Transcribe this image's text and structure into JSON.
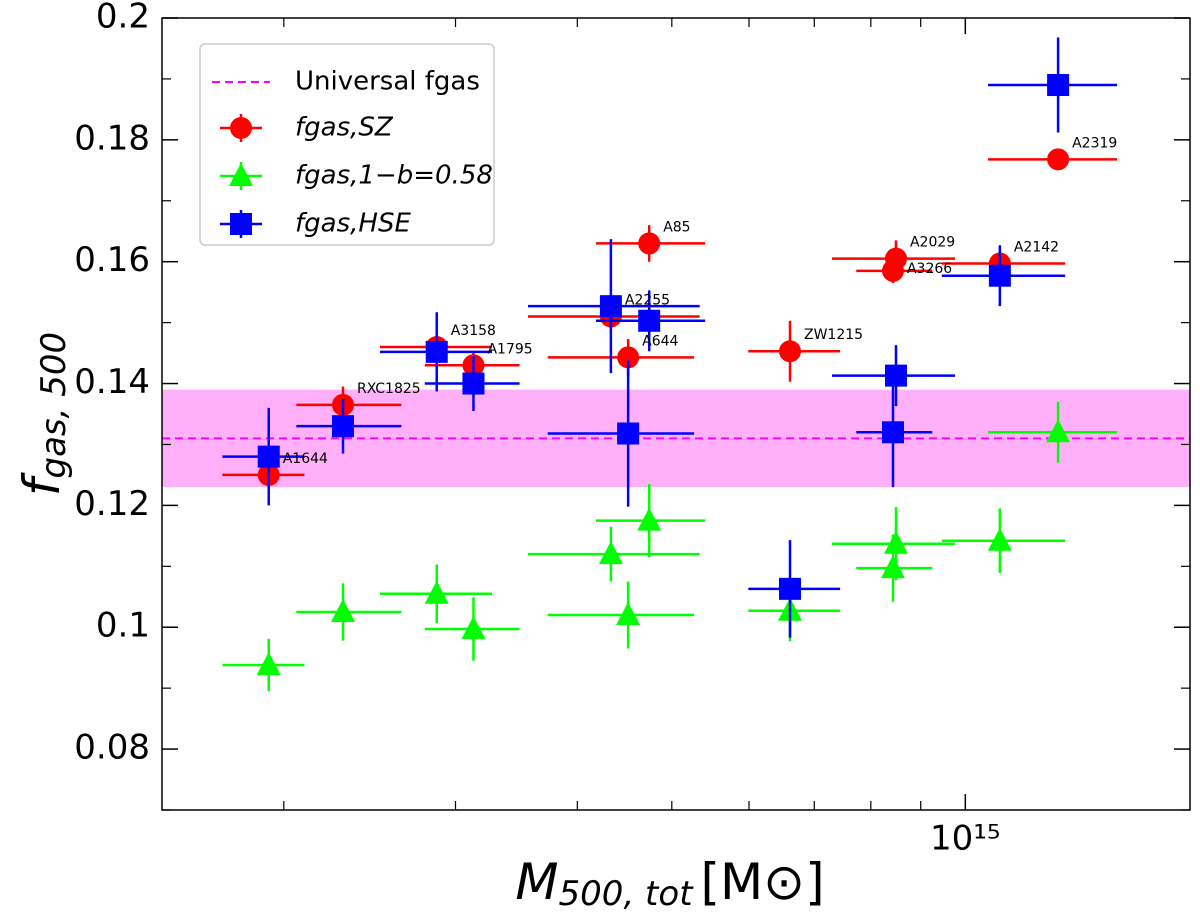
{
  "chart_data": {
    "type": "scatter",
    "xlabel": {
      "main": "M",
      "sub": "500, tot",
      "unit": "[M⊙]"
    },
    "ylabel": {
      "main": "f",
      "sub": "gas, 500"
    },
    "xscale": "log",
    "xlim": [
      150000000000000,
      1700000000000000
    ],
    "ylim": [
      0.07,
      0.2
    ],
    "xticks": [
      {
        "value": 1000000000000000,
        "label": "10¹⁵"
      }
    ],
    "xminor": [
      200000000000000,
      300000000000000,
      400000000000000,
      500000000000000,
      600000000000000,
      700000000000000,
      800000000000000,
      900000000000000
    ],
    "yticks": [
      0.08,
      0.1,
      0.12,
      0.14,
      0.16,
      0.18,
      0.2
    ],
    "yminor": [
      0.07,
      0.09,
      0.11,
      0.13,
      0.15,
      0.17,
      0.19
    ],
    "legend": "upper left",
    "clusters": [
      "A1644",
      "RXC1825",
      "A3158",
      "A1795",
      "A2255",
      "A644",
      "A85",
      "ZW1215",
      "A3266",
      "A2029",
      "A2142",
      "A2319"
    ],
    "x": [
      193000000000000,
      230000000000000,
      287000000000000,
      313000000000000,
      433000000000000,
      451000000000000,
      474000000000000,
      661000000000000,
      843000000000000,
      849000000000000,
      1085000000000000,
      1245000000000000
    ],
    "xlow": [
      173000000000000,
      206000000000000,
      251000000000000,
      279000000000000,
      356000000000000,
      373000000000000,
      418000000000000,
      599000000000000,
      773000000000000,
      730000000000000,
      946000000000000,
      1055000000000000
    ],
    "xhigh": [
      210000000000000,
      264000000000000,
      327000000000000,
      349000000000000,
      534000000000000,
      527000000000000,
      541000000000000,
      744000000000000,
      925000000000000,
      976000000000000,
      1266000000000000,
      1431000000000000
    ],
    "universal": {
      "name": "Universal fgas",
      "value": 0.131,
      "band": [
        0.123,
        0.139
      ],
      "color": "#ff00ff",
      "band_color": "#ffb0f8"
    },
    "series": [
      {
        "name": "fgas,SZ",
        "color": "#ff0000",
        "marker": "circle",
        "values": [
          0.125,
          0.1365,
          0.146,
          0.143,
          0.151,
          0.1443,
          0.163,
          0.1453,
          0.1585,
          0.1605,
          0.1597,
          0.1768
        ],
        "yerr": [
          0.002,
          0.003,
          0.003,
          0.002,
          0.002,
          0.003,
          0.003,
          0.005,
          0.002,
          0.003,
          0.002,
          0.001
        ]
      },
      {
        "name": "fgas,1−b=0.58",
        "color": "#00ff00",
        "marker": "triangle",
        "values": [
          0.0938,
          0.1025,
          0.1055,
          0.0997,
          0.112,
          0.102,
          0.1175,
          0.1027,
          0.1097,
          0.1137,
          0.1142,
          0.132
        ],
        "yerr": [
          0.0043,
          0.0047,
          0.0048,
          0.0052,
          0.0045,
          0.0055,
          0.006,
          0.005,
          0.0055,
          0.006,
          0.0053,
          0.005
        ]
      },
      {
        "name": "fgas,HSE",
        "color": "#0000ff",
        "marker": "square",
        "values": [
          0.128,
          0.133,
          0.1452,
          0.14,
          0.1527,
          0.1318,
          0.1503,
          0.1063,
          0.132,
          0.1413,
          0.1577,
          0.189
        ],
        "yerr": [
          0.008,
          0.0045,
          0.0065,
          0.0045,
          0.011,
          0.012,
          0.005,
          0.008,
          0.009,
          0.005,
          0.005,
          0.0078
        ]
      }
    ]
  }
}
